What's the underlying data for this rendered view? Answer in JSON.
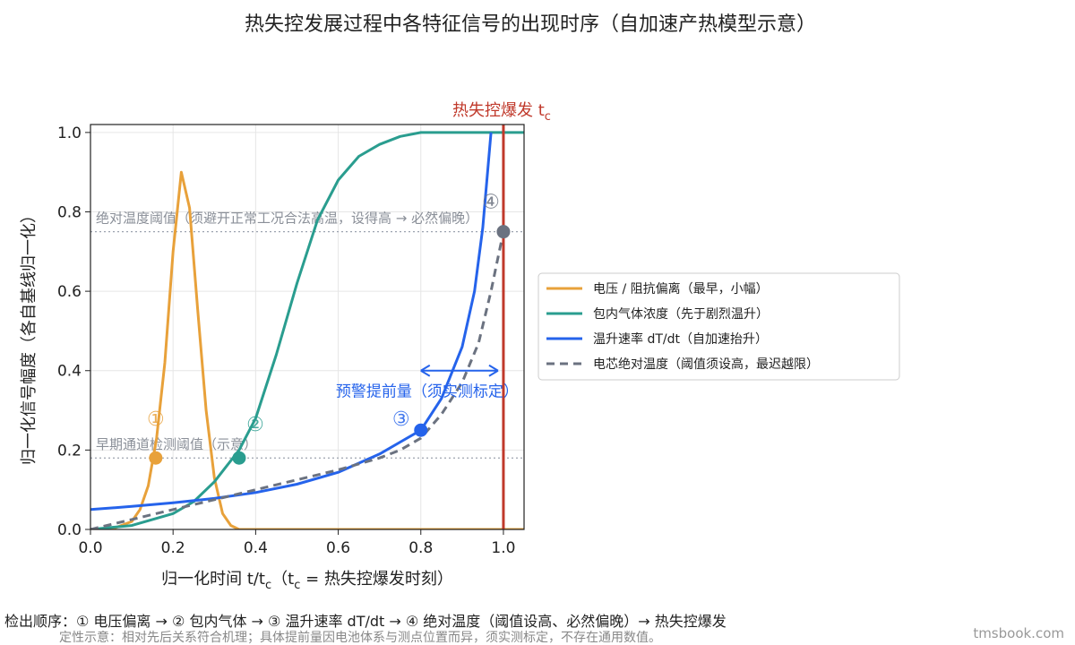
{
  "title": "热失控发展过程中各特征信号的出现时序（自加速产热模型示意）",
  "colors": {
    "voltage": "#e8a13a",
    "gas": "#2a9d8f",
    "rate": "#2563eb",
    "temp": "#6b7280",
    "runaway": "#c0392b",
    "threshold": "#9ca3af"
  },
  "chart_data": {
    "type": "line",
    "xlabel": "归一化时间  t/t",
    "xlabel_sub": "c",
    "xlabel_tail_a": "（t",
    "xlabel_tail_sub": "c",
    "xlabel_tail_b": " = 热失控爆发时刻）",
    "ylabel": "归一化信号幅度（各自基线归一化）",
    "xlim": [
      0,
      1.05
    ],
    "ylim": [
      0,
      1.02
    ],
    "xticks": [
      "0.0",
      "0.2",
      "0.4",
      "0.6",
      "0.8",
      "1.0"
    ],
    "xtick_values": [
      0,
      0.2,
      0.4,
      0.6,
      0.8,
      1.0
    ],
    "yticks": [
      "0.0",
      "0.2",
      "0.4",
      "0.6",
      "0.8",
      "1.0"
    ],
    "ytick_values": [
      0,
      0.2,
      0.4,
      0.6,
      0.8,
      1.0
    ],
    "grid": true,
    "legend_position": "right",
    "series": [
      {
        "name": "电压 / 阻抗偏离（最早，小幅）",
        "key": "voltage",
        "style": "solid",
        "x": [
          0.0,
          0.05,
          0.1,
          0.12,
          0.14,
          0.16,
          0.18,
          0.2,
          0.22,
          0.24,
          0.26,
          0.28,
          0.3,
          0.32,
          0.34,
          0.36,
          0.4,
          0.5,
          1.05
        ],
        "y": [
          0.0,
          0.0,
          0.02,
          0.05,
          0.11,
          0.23,
          0.42,
          0.7,
          0.9,
          0.81,
          0.55,
          0.3,
          0.13,
          0.04,
          0.01,
          0.0,
          0.0,
          0.0,
          0.0
        ]
      },
      {
        "name": "包内气体浓度（先于剧烈温升）",
        "key": "gas",
        "style": "solid",
        "x": [
          0.0,
          0.1,
          0.2,
          0.25,
          0.3,
          0.33,
          0.36,
          0.4,
          0.45,
          0.5,
          0.55,
          0.6,
          0.65,
          0.7,
          0.75,
          0.8,
          0.9,
          1.05
        ],
        "y": [
          0.0,
          0.01,
          0.04,
          0.07,
          0.12,
          0.16,
          0.2,
          0.28,
          0.44,
          0.62,
          0.78,
          0.88,
          0.94,
          0.97,
          0.99,
          1.0,
          1.0,
          1.0
        ]
      },
      {
        "name": "温升速率 dT/dt（自加速抬升）",
        "key": "rate",
        "style": "solid",
        "x": [
          0.0,
          0.1,
          0.2,
          0.3,
          0.4,
          0.5,
          0.6,
          0.7,
          0.75,
          0.8,
          0.85,
          0.9,
          0.93,
          0.95,
          0.97
        ],
        "y": [
          0.05,
          0.058,
          0.067,
          0.078,
          0.093,
          0.114,
          0.144,
          0.19,
          0.22,
          0.25,
          0.33,
          0.46,
          0.6,
          0.76,
          1.0
        ]
      },
      {
        "name": "电芯绝对温度（阈值须设高，最迟越限）",
        "key": "temp",
        "style": "dashed",
        "x": [
          0.0,
          0.1,
          0.2,
          0.3,
          0.4,
          0.5,
          0.6,
          0.7,
          0.75,
          0.8,
          0.85,
          0.9,
          0.94,
          0.97,
          0.99,
          1.0
        ],
        "y": [
          0.0,
          0.025,
          0.05,
          0.075,
          0.1,
          0.125,
          0.15,
          0.18,
          0.2,
          0.23,
          0.29,
          0.37,
          0.47,
          0.6,
          0.7,
          0.75
        ]
      }
    ],
    "markers": [
      {
        "label": "①",
        "key": "voltage",
        "x": 0.158,
        "y": 0.18
      },
      {
        "label": "②",
        "key": "gas",
        "x": 0.36,
        "y": 0.18
      },
      {
        "label": "③",
        "key": "rate",
        "x": 0.8,
        "y": 0.25
      },
      {
        "label": "④",
        "key": "temp",
        "x": 1.0,
        "y": 0.75
      }
    ],
    "thresholds": [
      {
        "y": 0.75,
        "label": "绝对温度阈值（须避开正常工况合法高温，设得高 → 必然偏晚）"
      },
      {
        "y": 0.18,
        "label": "早期通道检测阈值（示意）"
      }
    ],
    "runaway_line": {
      "x": 1.0,
      "label": "热失控爆发 t",
      "label_sub": "c"
    },
    "lead_time": {
      "x_from": 0.8,
      "x_to": 1.0,
      "y": 0.4,
      "label": "预警提前量（须实测标定）"
    }
  },
  "footer": {
    "line1": "检出顺序：① 电压偏离 → ② 包内气体 → ③ 温升速率 dT/dt → ④ 绝对温度（阈值设高、必然偏晚）→ 热失控爆发",
    "line2": "定性示意：相对先后关系符合机理；具体提前量因电池体系与测点位置而异，须实测标定，不存在通用数值。"
  },
  "watermark": "tmsbook.com"
}
